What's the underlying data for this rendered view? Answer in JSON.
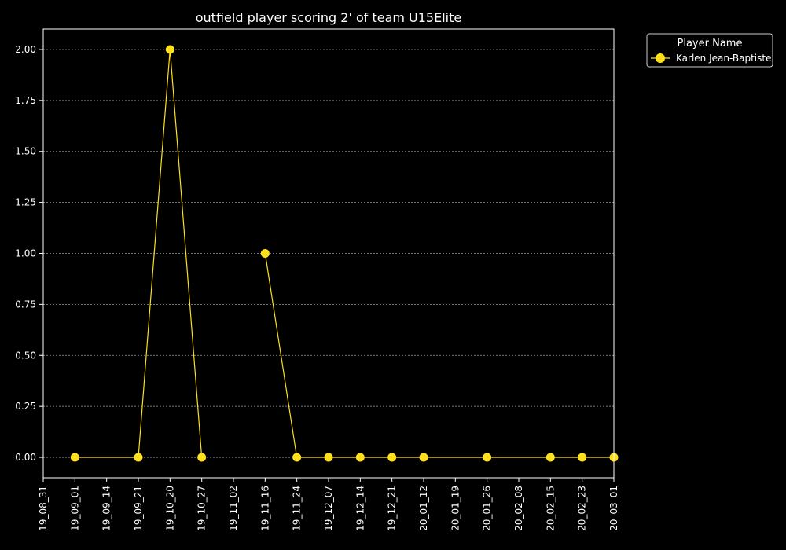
{
  "chart_data": {
    "type": "line",
    "title": "outfield player scoring 2' of team U15Elite",
    "xlabel": "",
    "ylabel": "",
    "x_ticks": [
      "19_08_31",
      "19_09_01",
      "19_09_14",
      "19_09_21",
      "19_10_20",
      "19_10_27",
      "19_11_02",
      "19_11_16",
      "19_11_24",
      "19_12_07",
      "19_12_14",
      "19_12_21",
      "20_01_12",
      "20_01_19",
      "20_01_26",
      "20_02_08",
      "20_02_15",
      "20_02_23",
      "20_03_01"
    ],
    "y_ticks": [
      "0.00",
      "0.25",
      "0.50",
      "0.75",
      "1.00",
      "1.25",
      "1.50",
      "1.75",
      "2.00"
    ],
    "ylim": [
      -0.1,
      2.1
    ],
    "grid": true,
    "legend": {
      "title": "Player Name",
      "position": "outside-top-right"
    },
    "series": [
      {
        "name": "Karlen Jean-Baptiste",
        "color": "#ffe01a",
        "segments": [
          [
            {
              "x": "19_09_01",
              "y": 0
            },
            {
              "x": "19_09_21",
              "y": 0
            },
            {
              "x": "19_10_20",
              "y": 2
            },
            {
              "x": "19_10_27",
              "y": 0
            }
          ],
          [
            {
              "x": "19_11_16",
              "y": 1
            },
            {
              "x": "19_11_24",
              "y": 0
            },
            {
              "x": "19_12_07",
              "y": 0
            },
            {
              "x": "19_12_14",
              "y": 0
            },
            {
              "x": "19_12_21",
              "y": 0
            },
            {
              "x": "20_01_12",
              "y": 0
            },
            {
              "x": "20_01_26",
              "y": 0
            },
            {
              "x": "20_02_15",
              "y": 0
            },
            {
              "x": "20_02_23",
              "y": 0
            },
            {
              "x": "20_03_01",
              "y": 0
            }
          ]
        ]
      }
    ]
  }
}
